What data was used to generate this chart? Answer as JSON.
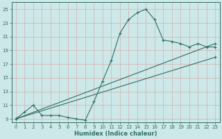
{
  "title": "",
  "xlabel": "Humidex (Indice chaleur)",
  "background_color": "#cde8e8",
  "grid_color": "#d4b8b8",
  "line_color": "#2e6e62",
  "xlim": [
    -0.5,
    23.5
  ],
  "ylim": [
    8.5,
    26
  ],
  "xticks": [
    0,
    1,
    2,
    3,
    4,
    5,
    6,
    7,
    8,
    9,
    10,
    11,
    12,
    13,
    14,
    15,
    16,
    17,
    18,
    19,
    20,
    21,
    22,
    23
  ],
  "yticks": [
    9,
    11,
    13,
    15,
    17,
    19,
    21,
    23,
    25
  ],
  "line1_x": [
    0,
    1,
    2,
    3,
    4,
    5,
    6,
    7,
    8,
    9,
    10,
    11,
    12,
    13,
    14,
    15,
    16,
    17,
    18,
    19,
    20,
    21,
    22,
    23
  ],
  "line1_y": [
    9,
    10,
    11,
    9.5,
    9.5,
    9.5,
    9.2,
    9.0,
    8.8,
    11.5,
    14.5,
    17.5,
    21.5,
    23.5,
    24.5,
    25.0,
    23.5,
    20.5,
    20.3,
    20.0,
    19.5,
    20.0,
    19.5,
    19.5
  ],
  "line2_x": [
    0,
    23
  ],
  "line2_y": [
    9,
    20.0
  ],
  "line3_x": [
    0,
    23
  ],
  "line3_y": [
    9,
    18.0
  ]
}
